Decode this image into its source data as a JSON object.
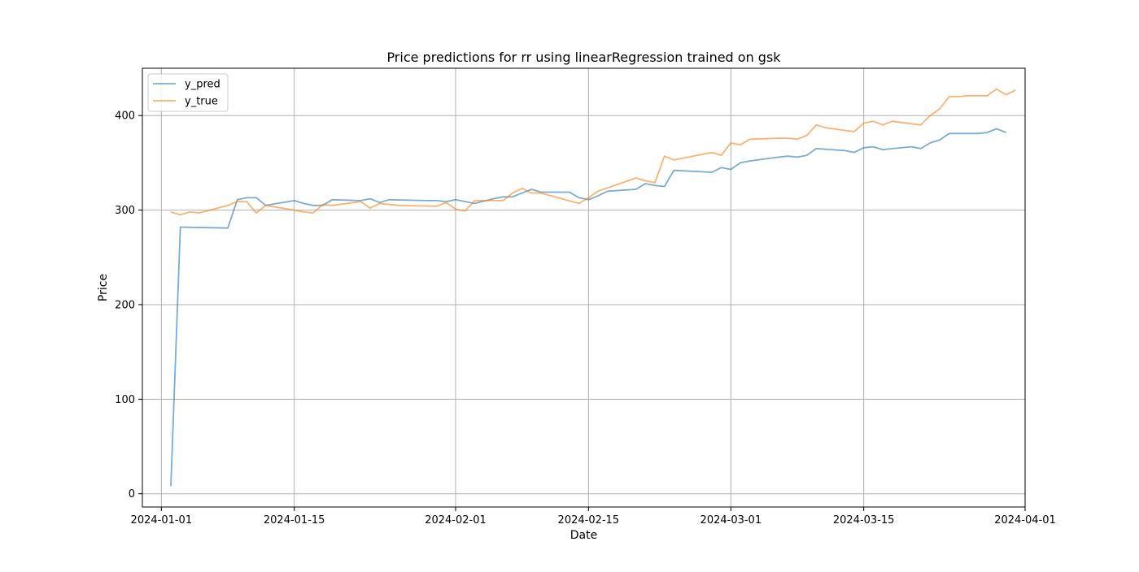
{
  "chart_data": {
    "type": "line",
    "title": "Price predictions for rr using linearRegression trained on gsk",
    "xlabel": "Date",
    "ylabel": "Price",
    "xlim": [
      "2023-12-30",
      "2024-04-01"
    ],
    "ylim": [
      -14,
      450
    ],
    "x_ticks": [
      "2024-01-01",
      "2024-01-15",
      "2024-02-01",
      "2024-02-15",
      "2024-03-01",
      "2024-03-15",
      "2024-04-01"
    ],
    "y_ticks": [
      0,
      100,
      200,
      300,
      400
    ],
    "grid": true,
    "legend_position": "upper left",
    "series": [
      {
        "name": "y_pred",
        "color": "#1f77b4",
        "points": [
          [
            "2024-01-02",
            8
          ],
          [
            "2024-01-03",
            282
          ],
          [
            "2024-01-08",
            281
          ],
          [
            "2024-01-09",
            311
          ],
          [
            "2024-01-10",
            313
          ],
          [
            "2024-01-11",
            313
          ],
          [
            "2024-01-12",
            305
          ],
          [
            "2024-01-15",
            310
          ],
          [
            "2024-01-16",
            307
          ],
          [
            "2024-01-17",
            305
          ],
          [
            "2024-01-18",
            305
          ],
          [
            "2024-01-19",
            311
          ],
          [
            "2024-01-22",
            310
          ],
          [
            "2024-01-23",
            312
          ],
          [
            "2024-01-24",
            308
          ],
          [
            "2024-01-25",
            311
          ],
          [
            "2024-01-29",
            310
          ],
          [
            "2024-01-30",
            310
          ],
          [
            "2024-01-31",
            309
          ],
          [
            "2024-02-01",
            311
          ],
          [
            "2024-02-02",
            309
          ],
          [
            "2024-02-03",
            307
          ],
          [
            "2024-02-05",
            312
          ],
          [
            "2024-02-06",
            314
          ],
          [
            "2024-02-07",
            314
          ],
          [
            "2024-02-08",
            318
          ],
          [
            "2024-02-09",
            322
          ],
          [
            "2024-02-10",
            319
          ],
          [
            "2024-02-12",
            319
          ],
          [
            "2024-02-13",
            319
          ],
          [
            "2024-02-14",
            313
          ],
          [
            "2024-02-15",
            311
          ],
          [
            "2024-02-16",
            315
          ],
          [
            "2024-02-17",
            320
          ],
          [
            "2024-02-20",
            322
          ],
          [
            "2024-02-21",
            328
          ],
          [
            "2024-02-22",
            326
          ],
          [
            "2024-02-23",
            325
          ],
          [
            "2024-02-24",
            342
          ],
          [
            "2024-02-28",
            340
          ],
          [
            "2024-02-29",
            345
          ],
          [
            "2024-03-01",
            343
          ],
          [
            "2024-03-02",
            350
          ],
          [
            "2024-03-03",
            352
          ],
          [
            "2024-03-06",
            356
          ],
          [
            "2024-03-07",
            357
          ],
          [
            "2024-03-08",
            356
          ],
          [
            "2024-03-09",
            358
          ],
          [
            "2024-03-10",
            365
          ],
          [
            "2024-03-13",
            363
          ],
          [
            "2024-03-14",
            361
          ],
          [
            "2024-03-15",
            366
          ],
          [
            "2024-03-16",
            367
          ],
          [
            "2024-03-17",
            364
          ],
          [
            "2024-03-20",
            367
          ],
          [
            "2024-03-21",
            365
          ],
          [
            "2024-03-22",
            371
          ],
          [
            "2024-03-23",
            374
          ],
          [
            "2024-03-24",
            381
          ],
          [
            "2024-03-27",
            381
          ],
          [
            "2024-03-28",
            382
          ],
          [
            "2024-03-29",
            386
          ],
          [
            "2024-03-30",
            382
          ]
        ]
      },
      {
        "name": "y_true",
        "color": "#ff7f0e",
        "points": [
          [
            "2024-01-02",
            298
          ],
          [
            "2024-01-03",
            295
          ],
          [
            "2024-01-04",
            298
          ],
          [
            "2024-01-05",
            297
          ],
          [
            "2024-01-08",
            305
          ],
          [
            "2024-01-09",
            309
          ],
          [
            "2024-01-10",
            309
          ],
          [
            "2024-01-11",
            297
          ],
          [
            "2024-01-12",
            305
          ],
          [
            "2024-01-15",
            300
          ],
          [
            "2024-01-16",
            298
          ],
          [
            "2024-01-17",
            297
          ],
          [
            "2024-01-18",
            306
          ],
          [
            "2024-01-19",
            305
          ],
          [
            "2024-01-22",
            309
          ],
          [
            "2024-01-23",
            302
          ],
          [
            "2024-01-24",
            307
          ],
          [
            "2024-01-26",
            305
          ],
          [
            "2024-01-30",
            304
          ],
          [
            "2024-01-31",
            308
          ],
          [
            "2024-02-01",
            301
          ],
          [
            "2024-02-02",
            299
          ],
          [
            "2024-02-03",
            310
          ],
          [
            "2024-02-06",
            310
          ],
          [
            "2024-02-07",
            318
          ],
          [
            "2024-02-08",
            323
          ],
          [
            "2024-02-09",
            318
          ],
          [
            "2024-02-10",
            318
          ],
          [
            "2024-02-14",
            307
          ],
          [
            "2024-02-15",
            313
          ],
          [
            "2024-02-16",
            320
          ],
          [
            "2024-02-20",
            334
          ],
          [
            "2024-02-21",
            331
          ],
          [
            "2024-02-22",
            329
          ],
          [
            "2024-02-23",
            357
          ],
          [
            "2024-02-24",
            353
          ],
          [
            "2024-02-28",
            361
          ],
          [
            "2024-02-29",
            358
          ],
          [
            "2024-03-01",
            371
          ],
          [
            "2024-03-02",
            369
          ],
          [
            "2024-03-03",
            375
          ],
          [
            "2024-03-06",
            376
          ],
          [
            "2024-03-07",
            376
          ],
          [
            "2024-03-08",
            375
          ],
          [
            "2024-03-09",
            379
          ],
          [
            "2024-03-10",
            390
          ],
          [
            "2024-03-11",
            387
          ],
          [
            "2024-03-14",
            383
          ],
          [
            "2024-03-15",
            392
          ],
          [
            "2024-03-16",
            394
          ],
          [
            "2024-03-17",
            390
          ],
          [
            "2024-03-18",
            394
          ],
          [
            "2024-03-21",
            390
          ],
          [
            "2024-03-22",
            400
          ],
          [
            "2024-03-23",
            407
          ],
          [
            "2024-03-24",
            420
          ],
          [
            "2024-03-25",
            420
          ],
          [
            "2024-03-26",
            421
          ],
          [
            "2024-03-28",
            421
          ],
          [
            "2024-03-29",
            428
          ],
          [
            "2024-03-30",
            422
          ],
          [
            "2024-03-31",
            427
          ]
        ]
      }
    ]
  }
}
